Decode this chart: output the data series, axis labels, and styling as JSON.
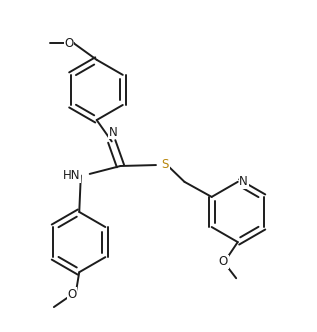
{
  "background": "#ffffff",
  "lc": "#1c1c1c",
  "Sc": "#b8860b",
  "Nc": "#1c1c1c",
  "lw": 1.4,
  "figsize": [
    3.17,
    3.32
  ],
  "dpi": 100,
  "xlim": [
    0,
    10
  ],
  "ylim": [
    0,
    10
  ],
  "ring_r": 0.95,
  "dbl_off": 0.11,
  "fs": 8.5
}
